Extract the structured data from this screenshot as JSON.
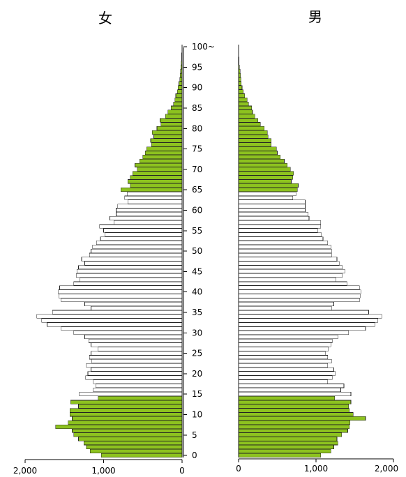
{
  "chart_data": {
    "type": "bar",
    "orientation": "population-pyramid",
    "titles": {
      "left": "女",
      "right": "男"
    },
    "age_tick_labels": [
      "0",
      "5",
      "10",
      "15",
      "20",
      "25",
      "30",
      "35",
      "40",
      "45",
      "50",
      "55",
      "60",
      "65",
      "70",
      "75",
      "80",
      "85",
      "90",
      "95",
      "100~"
    ],
    "x_tick_labels_left": [
      "2,000",
      "1,000",
      "0"
    ],
    "x_tick_labels_right": [
      "0",
      "1,000",
      "2,000"
    ],
    "xlim": [
      0,
      2000
    ],
    "highlight_color": "#8dc21f",
    "base_color": "#ffffff",
    "highlighted_age_ranges": [
      [
        0,
        14
      ],
      [
        65,
        100
      ]
    ],
    "ages": [
      0,
      1,
      2,
      3,
      4,
      5,
      6,
      7,
      8,
      9,
      10,
      11,
      12,
      13,
      14,
      15,
      16,
      17,
      18,
      19,
      20,
      21,
      22,
      23,
      24,
      25,
      26,
      27,
      28,
      29,
      30,
      31,
      32,
      33,
      34,
      35,
      36,
      37,
      38,
      39,
      40,
      41,
      42,
      43,
      44,
      45,
      46,
      47,
      48,
      49,
      50,
      51,
      52,
      53,
      54,
      55,
      56,
      57,
      58,
      59,
      60,
      61,
      62,
      63,
      64,
      65,
      66,
      67,
      68,
      69,
      70,
      71,
      72,
      73,
      74,
      75,
      76,
      77,
      78,
      79,
      80,
      81,
      82,
      83,
      84,
      85,
      86,
      87,
      88,
      89,
      90,
      91,
      92,
      93,
      94,
      95,
      96,
      97,
      98,
      99,
      100
    ],
    "series": [
      {
        "name": "女",
        "values": [
          1030,
          1170,
          1220,
          1250,
          1320,
          1380,
          1400,
          1610,
          1450,
          1400,
          1430,
          1430,
          1320,
          1420,
          1070,
          1310,
          1130,
          1100,
          1130,
          1230,
          1200,
          1160,
          1220,
          1150,
          1180,
          1160,
          1070,
          1160,
          1190,
          1240,
          1380,
          1540,
          1720,
          1790,
          1850,
          1650,
          1160,
          1240,
          1540,
          1570,
          1580,
          1560,
          1380,
          1300,
          1350,
          1340,
          1320,
          1240,
          1280,
          1180,
          1160,
          1140,
          1090,
          1040,
          980,
          1000,
          1050,
          870,
          920,
          840,
          840,
          820,
          690,
          730,
          700,
          780,
          660,
          690,
          660,
          630,
          570,
          600,
          540,
          500,
          470,
          450,
          390,
          400,
          360,
          380,
          320,
          270,
          280,
          210,
          180,
          140,
          110,
          90,
          80,
          60,
          50,
          40,
          30,
          25,
          20,
          15,
          10,
          7,
          5,
          3,
          2
        ]
      },
      {
        "name": "男",
        "values": [
          1060,
          1190,
          1230,
          1280,
          1270,
          1330,
          1410,
          1430,
          1440,
          1640,
          1480,
          1430,
          1420,
          1450,
          1240,
          1450,
          1320,
          1360,
          1150,
          1210,
          1250,
          1230,
          1150,
          1200,
          1150,
          1120,
          1160,
          1190,
          1210,
          1280,
          1420,
          1640,
          1760,
          1800,
          1850,
          1680,
          1200,
          1230,
          1560,
          1570,
          1580,
          1560,
          1400,
          1260,
          1340,
          1370,
          1340,
          1300,
          1270,
          1200,
          1200,
          1190,
          1150,
          1090,
          1070,
          1020,
          1060,
          1060,
          910,
          900,
          860,
          860,
          860,
          700,
          740,
          760,
          770,
          680,
          700,
          710,
          670,
          630,
          590,
          540,
          500,
          490,
          420,
          420,
          380,
          370,
          330,
          280,
          250,
          210,
          180,
          170,
          130,
          110,
          80,
          60,
          45,
          35,
          30,
          25,
          20,
          12,
          8,
          5,
          3,
          2,
          1
        ]
      }
    ]
  }
}
